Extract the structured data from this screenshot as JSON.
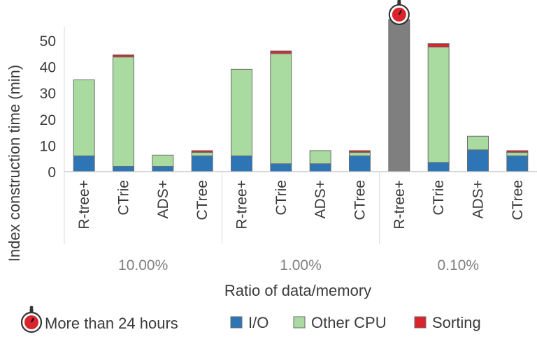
{
  "chart_data": {
    "type": "bar",
    "stacked": true,
    "title": "",
    "ylabel": "Index construction time (min)",
    "xlabel": "Ratio of data/memory",
    "ylim": [
      0,
      55
    ],
    "yticks": [
      0,
      10,
      20,
      30,
      40,
      50
    ],
    "grid": false,
    "legend_position": "bottom",
    "groups": [
      {
        "label": "10.00%",
        "categories": [
          "R-tree+",
          "CTrie",
          "ADS+",
          "CTree"
        ]
      },
      {
        "label": "1.00%",
        "categories": [
          "R-tree+",
          "CTrie",
          "ADS+",
          "CTree"
        ]
      },
      {
        "label": "0.10%",
        "categories": [
          "R-tree+",
          "CTrie",
          "ADS+",
          "CTree"
        ]
      }
    ],
    "categories": [
      "R-tree+",
      "CTrie",
      "ADS+",
      "CTree",
      "R-tree+",
      "CTrie",
      "ADS+",
      "CTree",
      "R-tree+",
      "CTrie",
      "ADS+",
      "CTree"
    ],
    "series": [
      {
        "name": "I/O",
        "color": "#2e75b6",
        "values": [
          6,
          2,
          2,
          6,
          6,
          3,
          3,
          6,
          0,
          3.5,
          8.3,
          6
        ]
      },
      {
        "name": "Other CPU",
        "color": "#a9dba0",
        "values": [
          29,
          41.7,
          4.3,
          1.3,
          33,
          42,
          5,
          1.3,
          0,
          44,
          5.2,
          1.3
        ]
      },
      {
        "name": "Sorting",
        "color": "#d9232d",
        "values": [
          0,
          0.8,
          0,
          0.7,
          0,
          1,
          0,
          0.7,
          0,
          1.3,
          0,
          0.7
        ]
      }
    ],
    "timeout": {
      "name": "More than 24 hours",
      "color": "#7f7f7f",
      "icon": "stopwatch-icon",
      "bars": [
        {
          "index": 8,
          "value": 58
        }
      ]
    }
  }
}
